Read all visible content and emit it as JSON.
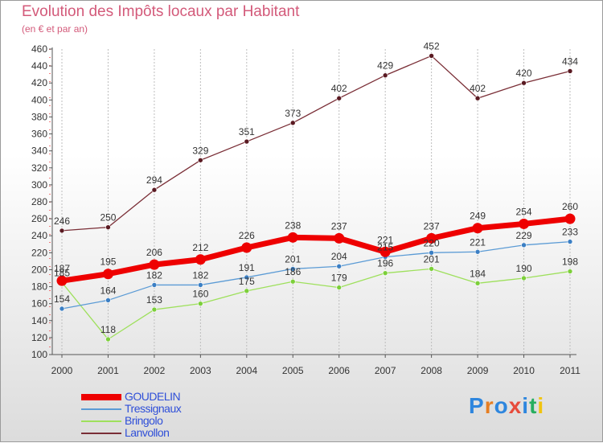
{
  "title": "Evolution des Impôts locaux par Habitant",
  "subtitle": "(en € et par an)",
  "logo": {
    "text": "Proxiti",
    "colors": [
      "#2e86de",
      "#e67e22",
      "#2e86de",
      "#e74c3c",
      "#2e86de",
      "#27ae60",
      "#f1c40f"
    ]
  },
  "chart_data": {
    "type": "line",
    "title": "Evolution des Impôts locaux par Habitant",
    "subtitle": "(en € et par an)",
    "xlabel": "",
    "ylabel": "",
    "x": [
      "2000",
      "2001",
      "2002",
      "2003",
      "2004",
      "2005",
      "2006",
      "2007",
      "2008",
      "2009",
      "2010",
      "2011"
    ],
    "ylim": [
      100,
      460
    ],
    "yticks": [
      100,
      120,
      140,
      160,
      180,
      200,
      220,
      240,
      260,
      280,
      300,
      320,
      340,
      360,
      380,
      400,
      420,
      440,
      460
    ],
    "grid": "vertical",
    "legend_position": "bottom-left",
    "series": [
      {
        "name": "Lanvollon",
        "color": "#7a2e36",
        "marker": "#5a1a22",
        "width": "thin",
        "values": [
          246,
          250,
          294,
          329,
          351,
          373,
          402,
          429,
          452,
          402,
          420,
          434
        ]
      },
      {
        "name": "Bringolo",
        "color": "#9ee05c",
        "marker": "#7ccf3a",
        "width": "thin",
        "values": [
          185,
          118,
          153,
          160,
          175,
          186,
          179,
          196,
          201,
          184,
          190,
          198
        ]
      },
      {
        "name": "Tressignaux",
        "color": "#5b9bd5",
        "marker": "#3b7fc4",
        "width": "thin",
        "values": [
          154,
          164,
          182,
          182,
          191,
          201,
          204,
          215,
          220,
          221,
          229,
          233
        ]
      },
      {
        "name": "GOUDELIN",
        "color": "#ee0000",
        "marker": "#ee0000",
        "width": "thick",
        "values": [
          187,
          195,
          206,
          212,
          226,
          238,
          237,
          221,
          237,
          249,
          254,
          260
        ]
      }
    ]
  }
}
